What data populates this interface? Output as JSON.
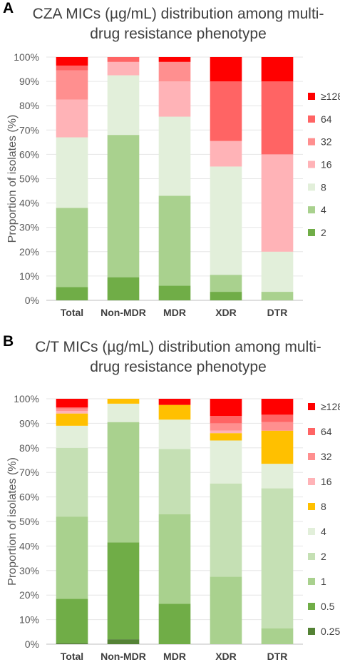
{
  "chart_data": [
    {
      "panel_label": "A",
      "type": "bar",
      "stacked": true,
      "title": "CZA MICs (µg/mL) distribution among multi-drug resistance phenotype",
      "ylabel": "Proportion of isolates (%)",
      "ylim": [
        0,
        100
      ],
      "yticks": [
        "0%",
        "10%",
        "20%",
        "30%",
        "40%",
        "50%",
        "60%",
        "70%",
        "80%",
        "90%",
        "100%"
      ],
      "categories": [
        "Total",
        "Non-MDR",
        "MDR",
        "XDR",
        "DTR"
      ],
      "legend_position": "right",
      "series": [
        {
          "name": "2",
          "color": "#70ad47",
          "values": [
            5.5,
            9.5,
            6,
            3.5,
            0
          ]
        },
        {
          "name": "4",
          "color": "#a9d18e",
          "values": [
            32.5,
            58.5,
            37,
            7,
            3.5
          ]
        },
        {
          "name": "8",
          "color": "#e2efda",
          "values": [
            29,
            24.5,
            32.5,
            44.5,
            16.5
          ]
        },
        {
          "name": "16",
          "color": "#ffb3b7",
          "values": [
            15.5,
            5.5,
            14.5,
            10.5,
            40
          ]
        },
        {
          "name": "32",
          "color": "#ff8f8f",
          "values": [
            12,
            0,
            8,
            0,
            0
          ]
        },
        {
          "name": "64",
          "color": "#ff6464",
          "values": [
            2,
            2,
            0,
            24.5,
            30
          ]
        },
        {
          "name": "≥128",
          "color": "#ff0000",
          "values": [
            3.5,
            0,
            2,
            10,
            10
          ]
        }
      ]
    },
    {
      "panel_label": "B",
      "type": "bar",
      "stacked": true,
      "title": "C/T MICs (µg/mL) distribution among multi-drug resistance phenotype",
      "ylabel": "Proportion of isolates (%)",
      "ylim": [
        0,
        100
      ],
      "yticks": [
        "0%",
        "10%",
        "20%",
        "30%",
        "40%",
        "50%",
        "60%",
        "70%",
        "80%",
        "90%",
        "100%"
      ],
      "categories": [
        "Total",
        "Non-MDR",
        "MDR",
        "XDR",
        "DTR"
      ],
      "legend_position": "right",
      "series": [
        {
          "name": "0.25",
          "color": "#548235",
          "values": [
            0.5,
            2,
            0,
            0,
            0
          ]
        },
        {
          "name": "0.5",
          "color": "#70ad47",
          "values": [
            18,
            39.5,
            16.5,
            0,
            0
          ]
        },
        {
          "name": "1",
          "color": "#a9d18e",
          "values": [
            33.5,
            49,
            36.5,
            27.5,
            6.5
          ]
        },
        {
          "name": "2",
          "color": "#c5e0b4",
          "values": [
            28,
            0,
            26.5,
            38,
            57
          ]
        },
        {
          "name": "4",
          "color": "#e2efda",
          "values": [
            9,
            7.5,
            12,
            17.5,
            10
          ]
        },
        {
          "name": "8",
          "color": "#ffc000",
          "values": [
            5,
            2,
            6,
            3,
            13.5
          ]
        },
        {
          "name": "16",
          "color": "#ffb3b7",
          "values": [
            1,
            0,
            0,
            1,
            0
          ]
        },
        {
          "name": "32",
          "color": "#ff8f8f",
          "values": [
            1,
            0,
            0,
            3,
            3.5
          ]
        },
        {
          "name": "64",
          "color": "#ff6464",
          "values": [
            0.5,
            0,
            0,
            3,
            3
          ]
        },
        {
          "name": "≥128",
          "color": "#ff0000",
          "values": [
            3.5,
            0,
            2.5,
            7,
            6.5
          ]
        }
      ]
    }
  ]
}
